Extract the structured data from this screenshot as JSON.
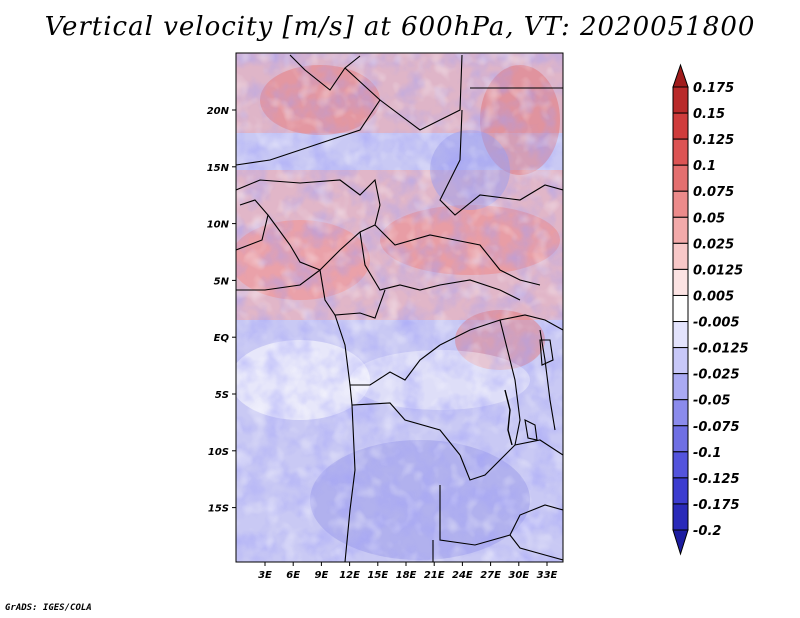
{
  "title": "Vertical velocity [m/s] at 600hPa, VT: 2020051800",
  "footer": "GrADS: IGES/COLA",
  "map": {
    "lat_labels": [
      "20N",
      "15N",
      "10N",
      "5N",
      "EQ",
      "5S",
      "10S",
      "15S"
    ],
    "lon_labels": [
      "3E",
      "6E",
      "9E",
      "12E",
      "15E",
      "18E",
      "21E",
      "24E",
      "27E",
      "30E",
      "33E"
    ]
  },
  "colorbar": {
    "labels": [
      "0.175",
      "0.15",
      "0.125",
      "0.1",
      "0.075",
      "0.05",
      "0.025",
      "0.0125",
      "0.005",
      "-0.005",
      "-0.0125",
      "-0.025",
      "-0.05",
      "-0.075",
      "-0.1",
      "-0.125",
      "-0.175",
      "-0.2"
    ],
    "colors": [
      "#a01c1c",
      "#b92a2a",
      "#cf3c3c",
      "#dc5454",
      "#e46f6f",
      "#ec8b8b",
      "#f3aaaa",
      "#f8c8c8",
      "#fce3e3",
      "#ffffff",
      "#e3e3fc",
      "#c8c8f8",
      "#aaaaf3",
      "#8b8bec",
      "#6f6fe4",
      "#5454dc",
      "#3c3ccf",
      "#2a2ab9",
      "#1c1ca0"
    ]
  }
}
